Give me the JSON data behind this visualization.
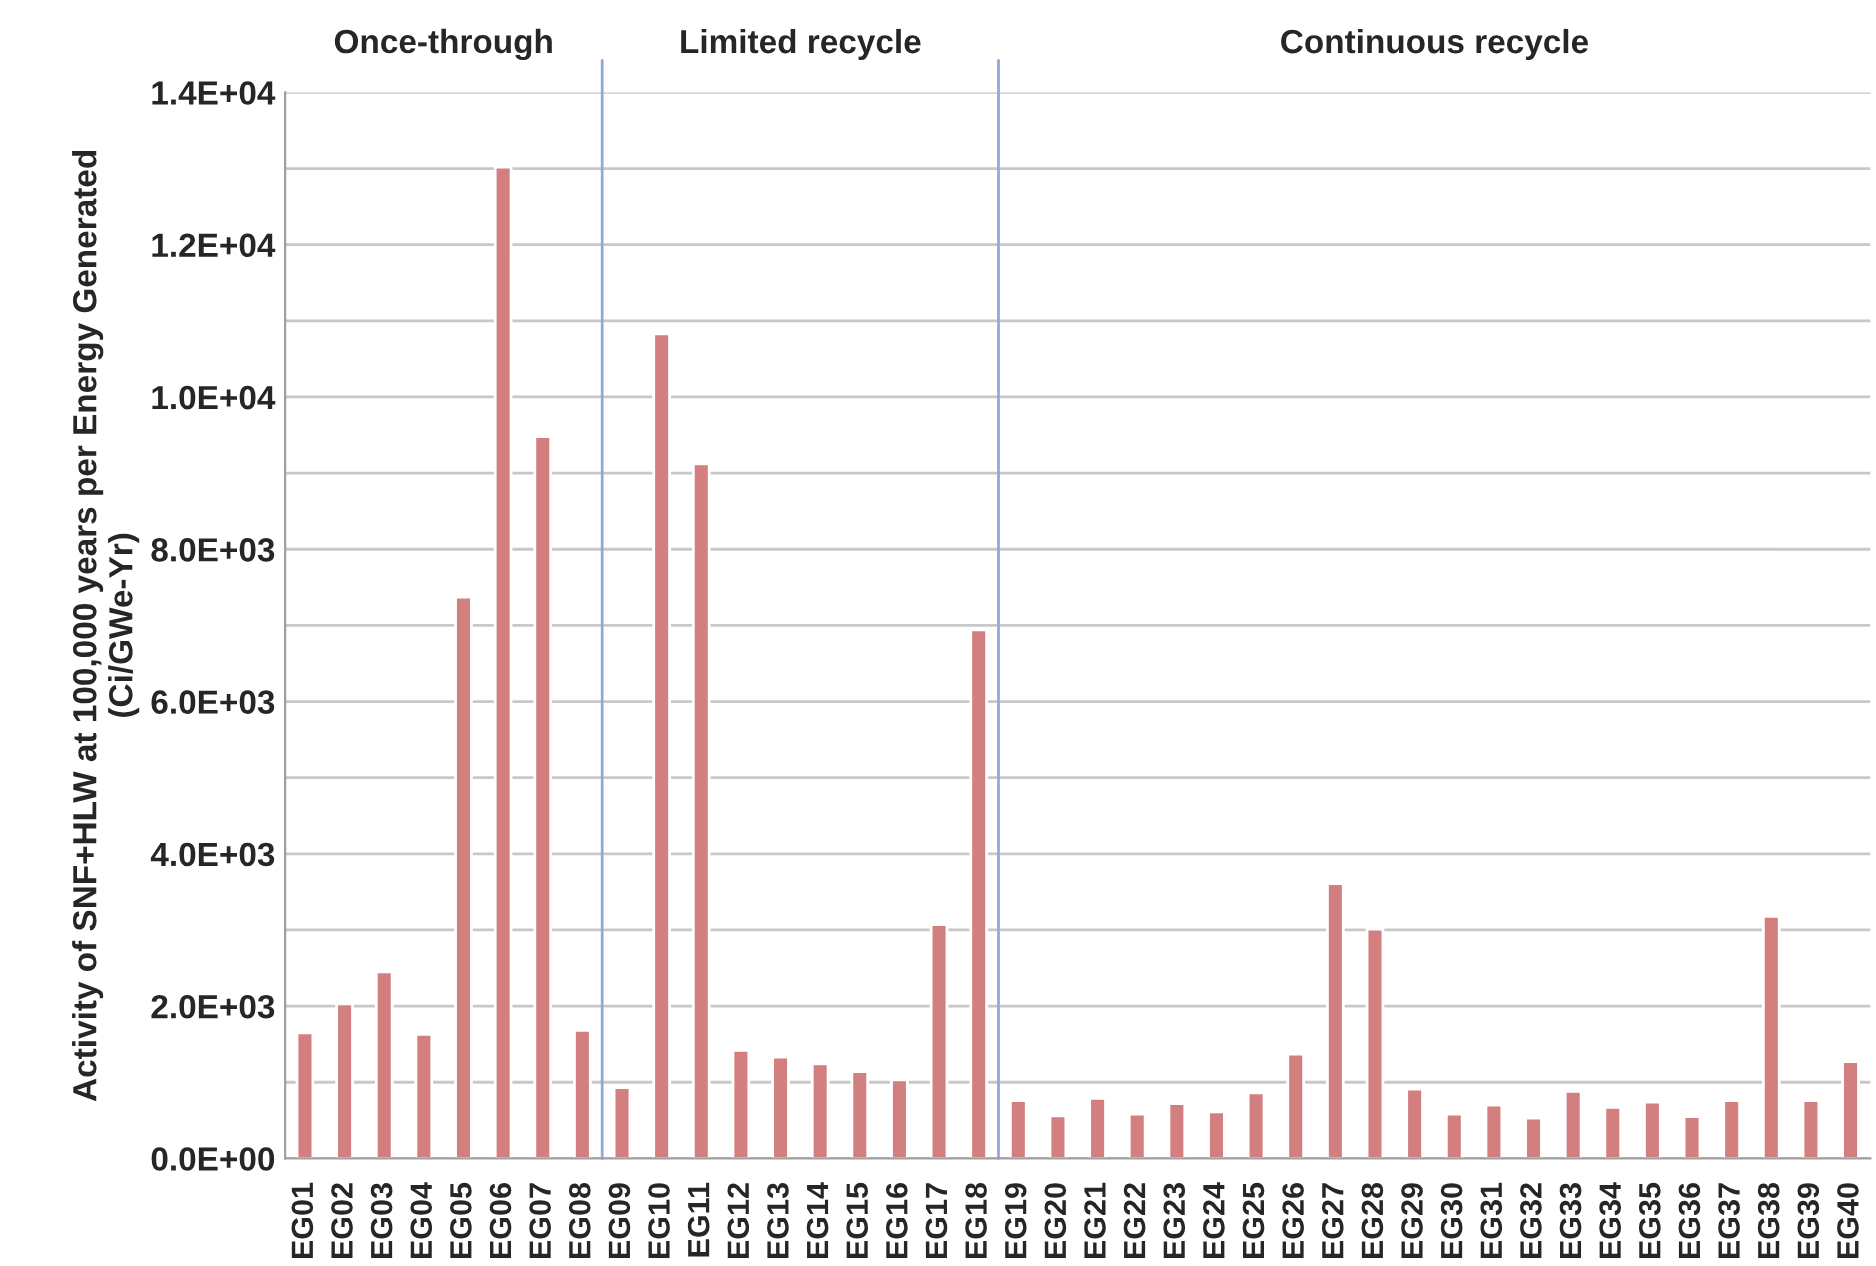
{
  "chart_data": {
    "type": "bar",
    "ylabel": "Activity of SNF+HLW at 100,000 years per Energy Generated\n(Ci/GWe-Yr)",
    "categories": [
      "EG01",
      "EG02",
      "EG03",
      "EG04",
      "EG05",
      "EG06",
      "EG07",
      "EG08",
      "EG09",
      "EG10",
      "EG11",
      "EG12",
      "EG13",
      "EG14",
      "EG15",
      "EG16",
      "EG17",
      "EG18",
      "EG19",
      "EG20",
      "EG21",
      "EG22",
      "EG23",
      "EG24",
      "EG25",
      "EG26",
      "EG27",
      "EG28",
      "EG29",
      "EG30",
      "EG31",
      "EG32",
      "EG33",
      "EG34",
      "EG35",
      "EG36",
      "EG37",
      "EG38",
      "EG39",
      "EG40"
    ],
    "values": [
      1650,
      2030,
      2450,
      1630,
      7370,
      13020,
      9480,
      1680,
      930,
      10830,
      9120,
      1420,
      1330,
      1240,
      1140,
      1030,
      3070,
      6940,
      760,
      560,
      790,
      580,
      720,
      610,
      860,
      1370,
      3610,
      3010,
      910,
      580,
      700,
      530,
      880,
      670,
      740,
      550,
      760,
      3180,
      760,
      1270
    ],
    "color": "#d47f7f",
    "ylim": [
      0,
      14000
    ],
    "yticks": [
      {
        "value": 0,
        "label": "0.0E+00"
      },
      {
        "value": 1000,
        "label": null
      },
      {
        "value": 2000,
        "label": "2.0E+03"
      },
      {
        "value": 3000,
        "label": null
      },
      {
        "value": 4000,
        "label": "4.0E+03"
      },
      {
        "value": 5000,
        "label": null
      },
      {
        "value": 6000,
        "label": "6.0E+03"
      },
      {
        "value": 7000,
        "label": null
      },
      {
        "value": 8000,
        "label": "8.0E+03"
      },
      {
        "value": 9000,
        "label": null
      },
      {
        "value": 10000,
        "label": "1.0E+04"
      },
      {
        "value": 11000,
        "label": null
      },
      {
        "value": 12000,
        "label": "1.2E+04"
      },
      {
        "value": 13000,
        "label": null
      },
      {
        "value": 14000,
        "label": "1.4E+04"
      }
    ],
    "grid": "y",
    "annotations": [
      "Once-through",
      "Limited recycle",
      "Continuous recycle"
    ]
  }
}
